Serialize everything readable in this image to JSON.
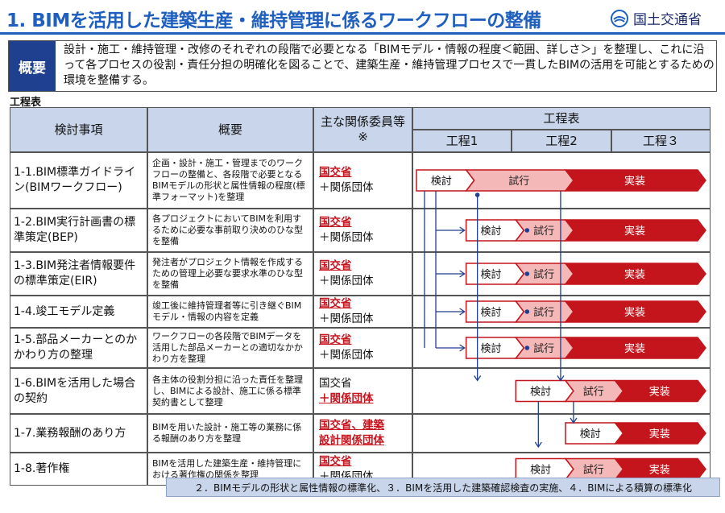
{
  "header": {
    "title": "1. BIMを活用した建築生産・維持管理に係るワークフローの整備",
    "ministry": "国土交通省"
  },
  "summary": {
    "label": "概要",
    "text": "設計・施工・維持管理・改修のそれぞれの段階で必要となる「BIMモデル・情報の程度＜範囲、詳しさ＞」を整理し、これに沿って各プロセスの役割・責任分担の明確化を図ることで、建築生産・維持管理プロセスで一貫したBIMの活用を可能とするための環境を整備する。"
  },
  "table": {
    "caption": "工程表",
    "headers": {
      "item": "検討事項",
      "overview": "概要",
      "members": "主な関係委員等※",
      "schedule": "工程表",
      "phases": [
        "工程1",
        "工程2",
        "工程３"
      ]
    },
    "rows": [
      {
        "name": "1-1.BIM標準ガイドライン(BIMワークフロー)",
        "desc": "企画・設計・施工・管理までのワークフローの整備と、各段階で必要となるBIMモデルの形状と属性情報の程度(標準フォーマット)を整理",
        "m1": "国交省",
        "m1_red": true,
        "m2": "＋関係団体",
        "m2_red": false
      },
      {
        "name": "1-2.BIM実行計画書の標準策定(BEP)",
        "desc": "各プロジェクトにおいてBIMを利用するために必要な事前取り決めのひな型を整備",
        "m1": "国交省",
        "m1_red": true,
        "m2": "＋関係団体",
        "m2_red": false
      },
      {
        "name": "1-3.BIM発注者情報要件の標準策定(EIR)",
        "desc": "発注者がプロジェクト情報を作成するための管理上必要な要求水準のひな型を整備",
        "m1": "国交省",
        "m1_red": true,
        "m2": "＋関係団体",
        "m2_red": false
      },
      {
        "name": "1-4.竣工モデル定義",
        "desc": "竣工後に維持管理者等に引き継ぐBIMモデル・情報の内容を定義",
        "m1": "国交省",
        "m1_red": true,
        "m2": "＋関係団体",
        "m2_red": false
      },
      {
        "name": "1-5.部品メーカーとのかかわり方の整理",
        "desc": "ワークフローの各段階でBIMデータを活用した部品メーカーとの適切なかかわり方を整理",
        "m1": "国交省",
        "m1_red": true,
        "m2": "＋関係団体",
        "m2_red": false
      },
      {
        "name": "1-6.BIMを活用した場合の契約",
        "desc": "各主体の役割分担に沿った責任を整理し、BIMによる設計、施工に係る標準契約書として整理",
        "m1": "国交省",
        "m1_red": false,
        "m2": "＋関係団体",
        "m2_red": true
      },
      {
        "name": "1-7.業務報酬のあり方",
        "desc": "BIMを用いた設計・施工等の業務に係る報酬のあり方を整理",
        "m1": "国交省、建築",
        "m1_red": true,
        "m2": "設計関係団体",
        "m2_red": true
      },
      {
        "name": "1-8.著作権",
        "desc": "BIMを活用した建築生産・維持管理における著作権の関係を整理",
        "m1": "国交省",
        "m1_red": true,
        "m2": "＋関係団体",
        "m2_red": false
      }
    ]
  },
  "schedule": {
    "labels": {
      "kento": "検討",
      "shiko": "試行",
      "jisso": "実装"
    },
    "rows": [
      {
        "kento_start": 0.0,
        "shiko_start": 0.5,
        "jisso_start": 1.5
      },
      {
        "kento_start": 0.5,
        "shiko_start": 1.0,
        "jisso_start": 1.5
      },
      {
        "kento_start": 0.5,
        "shiko_start": 1.0,
        "jisso_start": 1.5
      },
      {
        "kento_start": 0.5,
        "shiko_start": 1.0,
        "jisso_start": 1.5
      },
      {
        "kento_start": 0.5,
        "shiko_start": 1.0,
        "jisso_start": 1.5
      },
      {
        "kento_start": 1.0,
        "shiko_start": 1.5,
        "jisso_start": 2.0
      },
      {
        "kento_start": 1.5,
        "shiko_start": null,
        "jisso_start": 2.0
      },
      {
        "kento_start": 1.0,
        "shiko_start": 1.5,
        "jisso_start": 2.0
      }
    ],
    "colors": {
      "kento": "#ffffff",
      "shiko": "#f4b8b8",
      "jisso": "#c4151c",
      "outline": "#c4151c",
      "arrow": "#1f3f8f"
    }
  },
  "footer": {
    "text": "２．BIMモデルの形状と属性情報の標準化、３．BIMを活用した建築確認検査の実施、４．BIMによる積算の標準化"
  }
}
